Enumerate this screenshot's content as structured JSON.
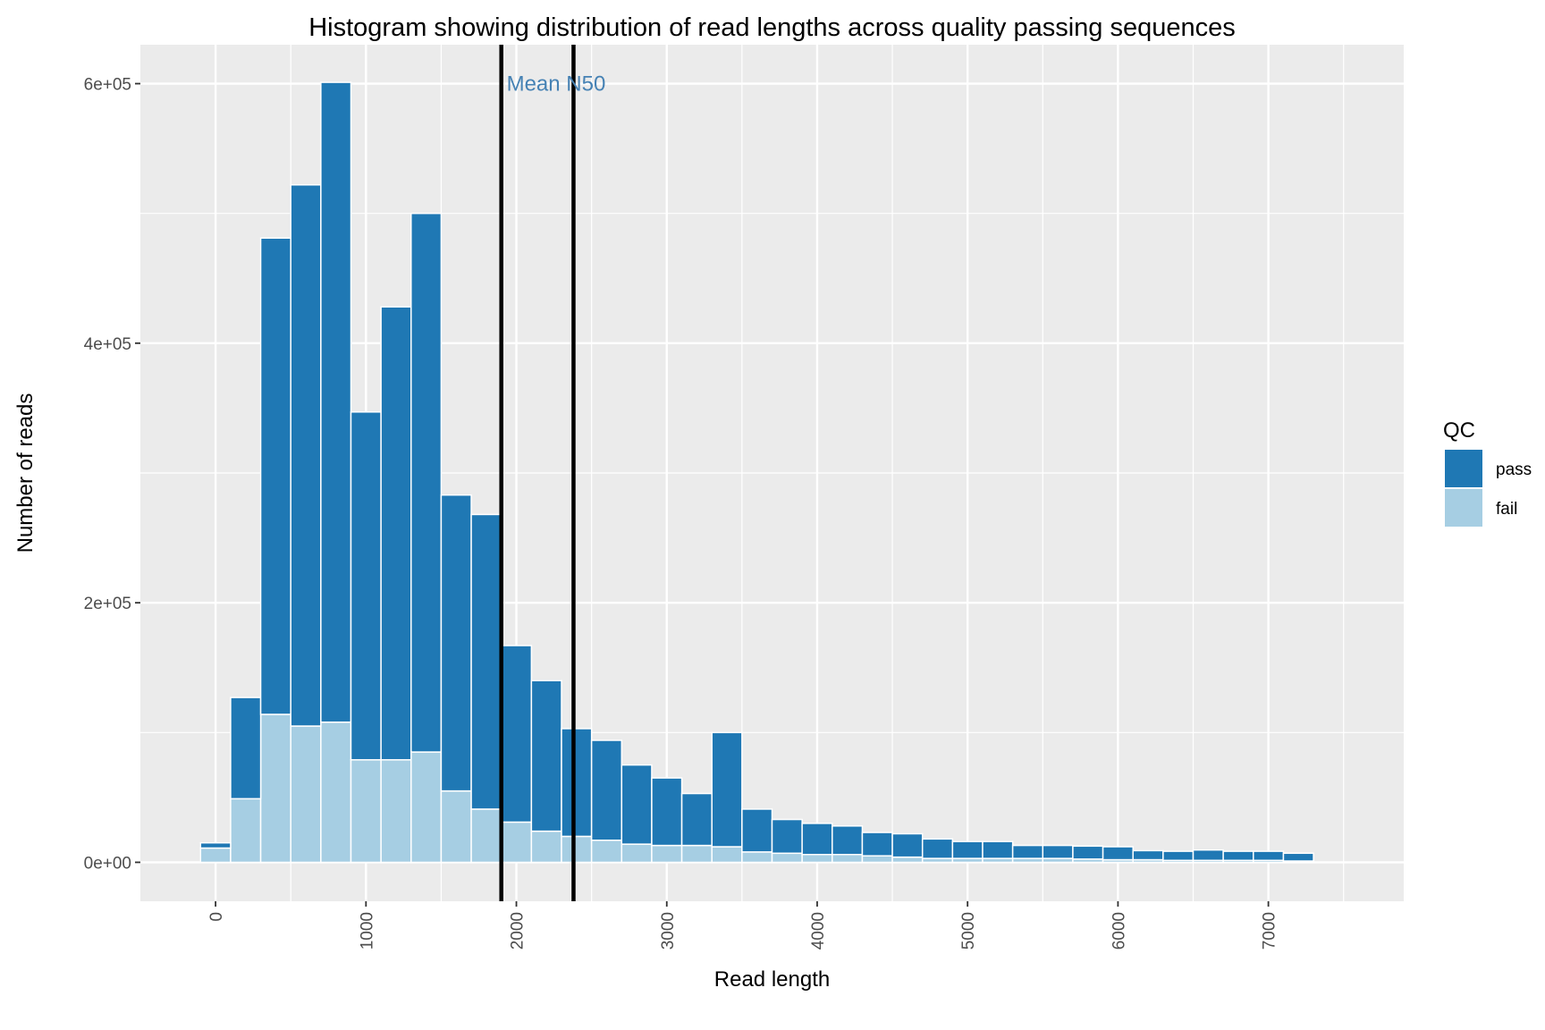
{
  "chart_data": {
    "type": "bar",
    "stacked": true,
    "title": "Histogram showing distribution of read lengths across quality passing sequences",
    "xlabel": "Read length",
    "ylabel": "Number of reads",
    "xlim": [
      -500,
      7900
    ],
    "ylim": [
      -30000,
      630000
    ],
    "x_ticks": [
      0,
      1000,
      2000,
      3000,
      4000,
      5000,
      6000,
      7000
    ],
    "x_tick_labels": [
      "0",
      "1000",
      "2000",
      "3000",
      "4000",
      "5000",
      "6000",
      "7000"
    ],
    "y_ticks": [
      0,
      200000,
      400000,
      600000
    ],
    "y_tick_labels": [
      "0e+00",
      "2e+05",
      "4e+05",
      "6e+05"
    ],
    "grid": true,
    "bin_width": 200,
    "x": [
      0,
      200,
      400,
      600,
      800,
      1000,
      1200,
      1400,
      1600,
      1800,
      2000,
      2200,
      2400,
      2600,
      2800,
      3000,
      3200,
      3400,
      3600,
      3800,
      4000,
      4200,
      4400,
      4600,
      4800,
      5000,
      5200,
      5400,
      5600,
      5800,
      6000,
      6200,
      6400,
      6600,
      6800,
      7000,
      7200
    ],
    "series": [
      {
        "name": "fail",
        "color": "#a6cee3",
        "values": [
          11000,
          49000,
          114000,
          105000,
          108000,
          79000,
          79000,
          85000,
          55000,
          41000,
          31000,
          24000,
          20000,
          17000,
          14000,
          13000,
          13000,
          12000,
          8000,
          7000,
          6000,
          6000,
          5000,
          4000,
          3000,
          3000,
          3000,
          3000,
          3000,
          2500,
          2000,
          2000,
          1500,
          1500,
          1500,
          1500,
          1000
        ]
      },
      {
        "name": "pass",
        "color": "#1f78b4",
        "values": [
          4000,
          78000,
          367000,
          417000,
          493000,
          268000,
          349000,
          415000,
          228000,
          227000,
          136000,
          116000,
          83000,
          77000,
          61000,
          52000,
          40000,
          88000,
          33000,
          26000,
          24000,
          22000,
          18000,
          18000,
          15000,
          13000,
          13000,
          10000,
          10000,
          10000,
          10000,
          7000,
          7000,
          8000,
          7000,
          7000,
          6000
        ]
      }
    ],
    "legend": {
      "title": "QC",
      "position": "right",
      "entries": [
        {
          "label": "pass",
          "color": "#1f78b4"
        },
        {
          "label": "fail",
          "color": "#a6cee3"
        }
      ]
    },
    "vlines": [
      {
        "x": 1900,
        "label": "Mean"
      },
      {
        "x": 2380,
        "label": "N50"
      }
    ],
    "annotation": {
      "text": "Mean N50",
      "color": "#4682b4",
      "x": 1935,
      "y": 600000
    }
  }
}
